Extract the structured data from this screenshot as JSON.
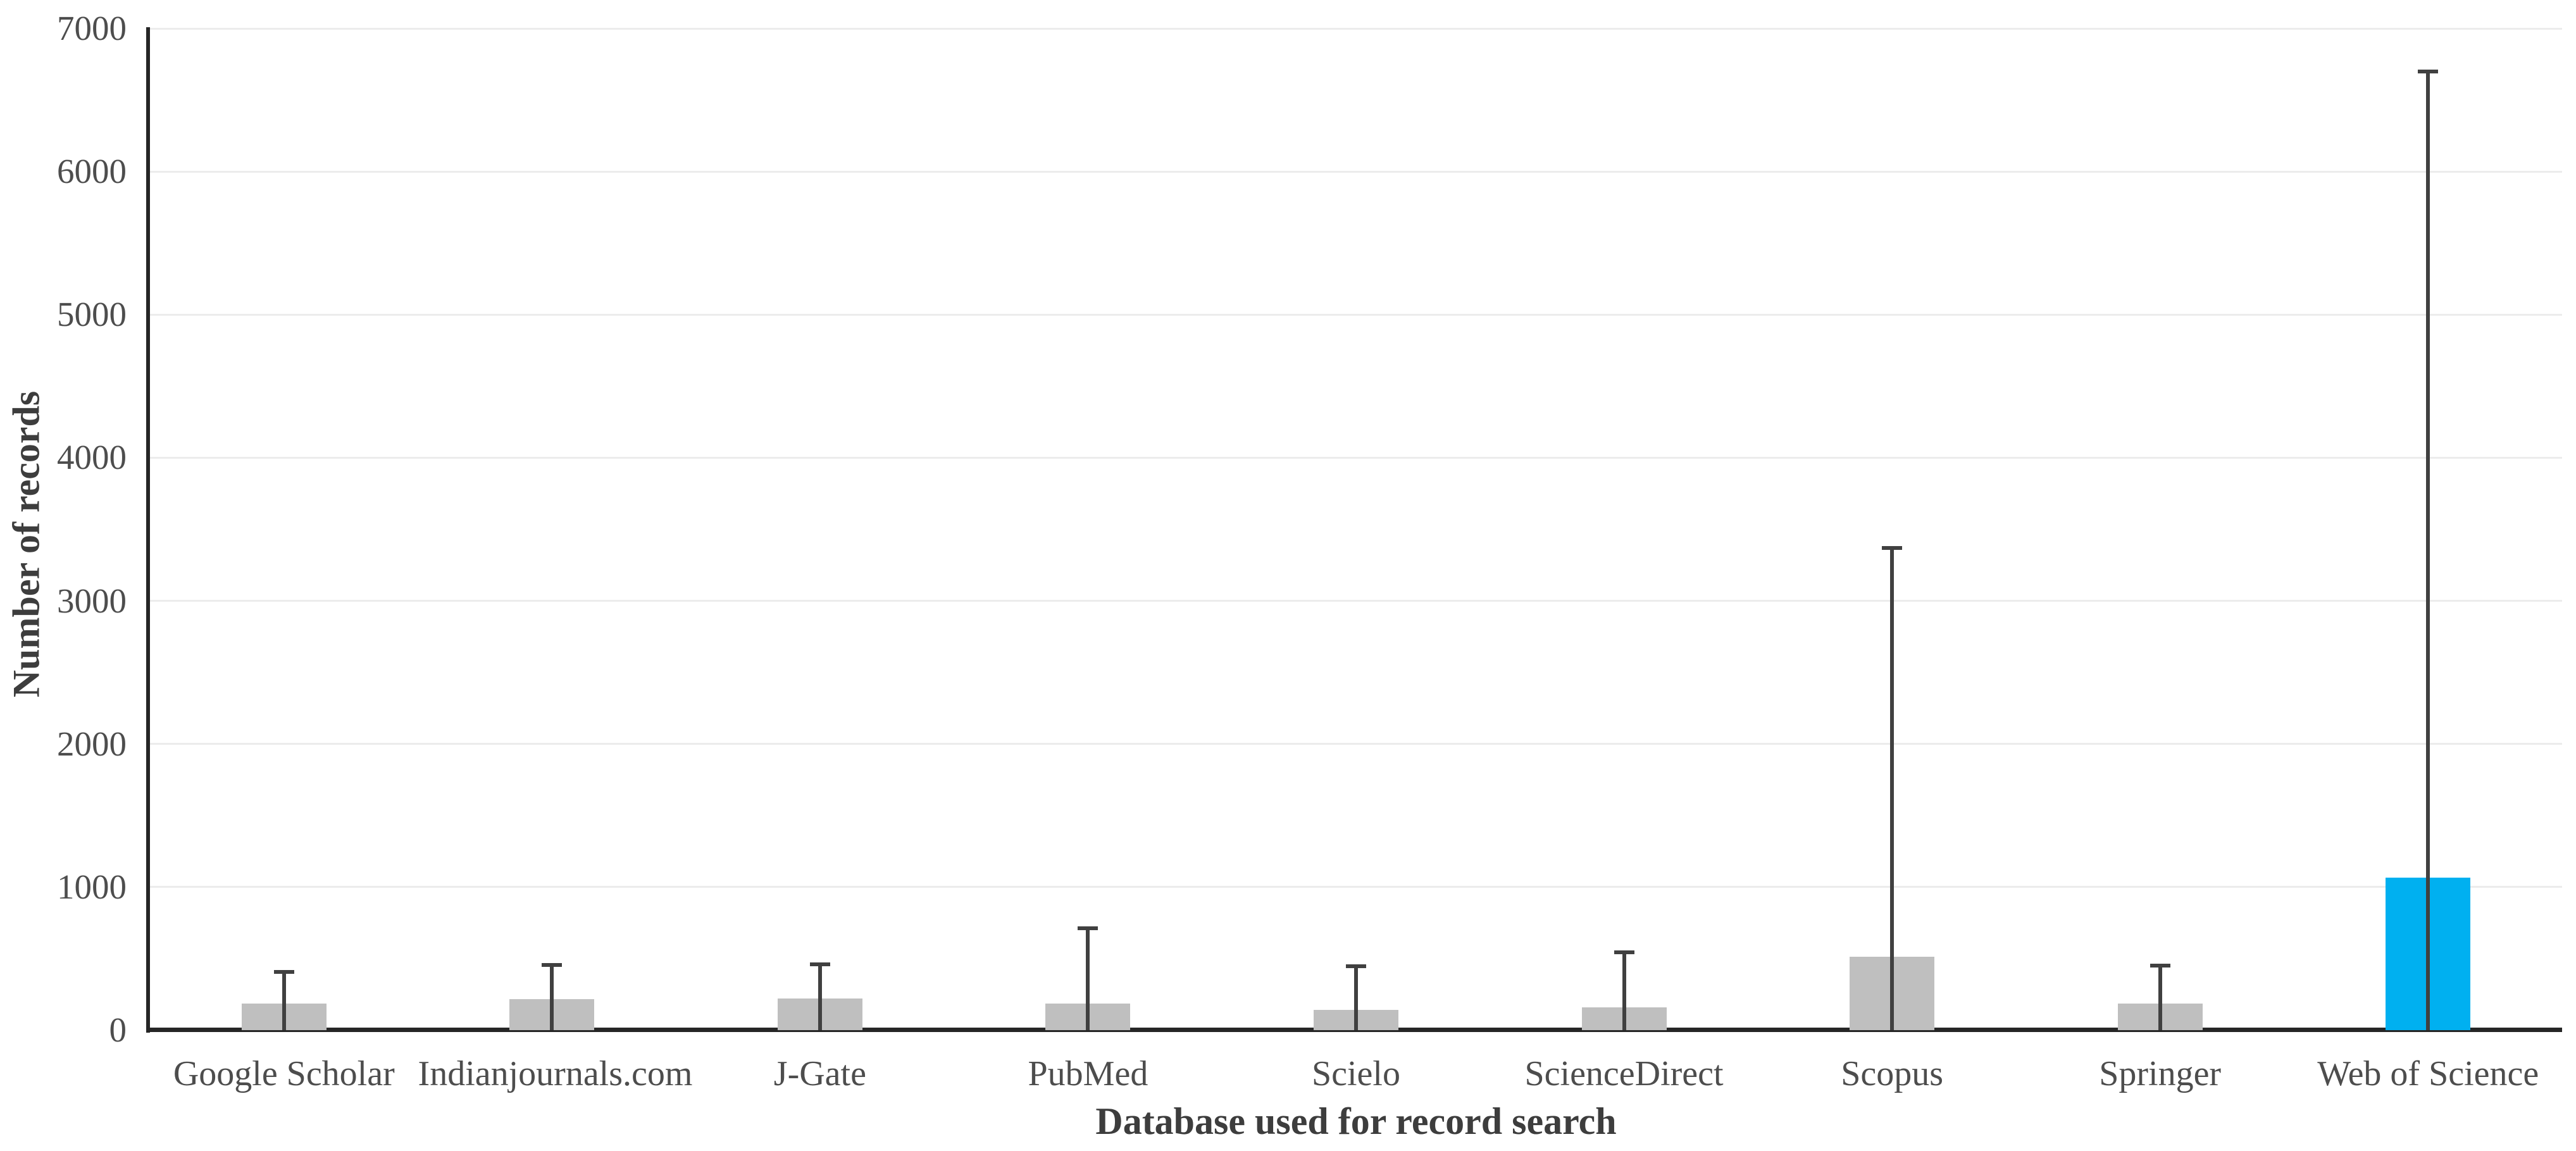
{
  "chart_data": {
    "type": "bar",
    "title": "",
    "xlabel": "Database used for record search",
    "ylabel": "Number of records",
    "categories": [
      "Google Scholar",
      "Indianjournals.com",
      "J-Gate",
      "PubMed",
      "Scielo",
      "ScienceDirect",
      "Scopus",
      "Springer",
      "Web of Science"
    ],
    "series": [
      {
        "name": "Number of records",
        "values": [
          185,
          215,
          220,
          185,
          140,
          160,
          515,
          185,
          1065
        ]
      }
    ],
    "error_bar_tops": [
      405,
      455,
      460,
      710,
      445,
      545,
      3370,
      450,
      6700
    ],
    "ylim": [
      0,
      7000
    ],
    "yticks": [
      0,
      1000,
      2000,
      3000,
      4000,
      5000,
      6000,
      7000
    ],
    "grid": true,
    "legend": "none",
    "highlight_index": 8,
    "colors": {
      "bar": "#bfbfbf",
      "highlight_bar": "#00b0f0",
      "error_bar": "#404040",
      "axis": "#262626",
      "gridline": "#ececec",
      "tick_text": "#4d4d4d",
      "title_text": "#3d3d3d"
    }
  }
}
